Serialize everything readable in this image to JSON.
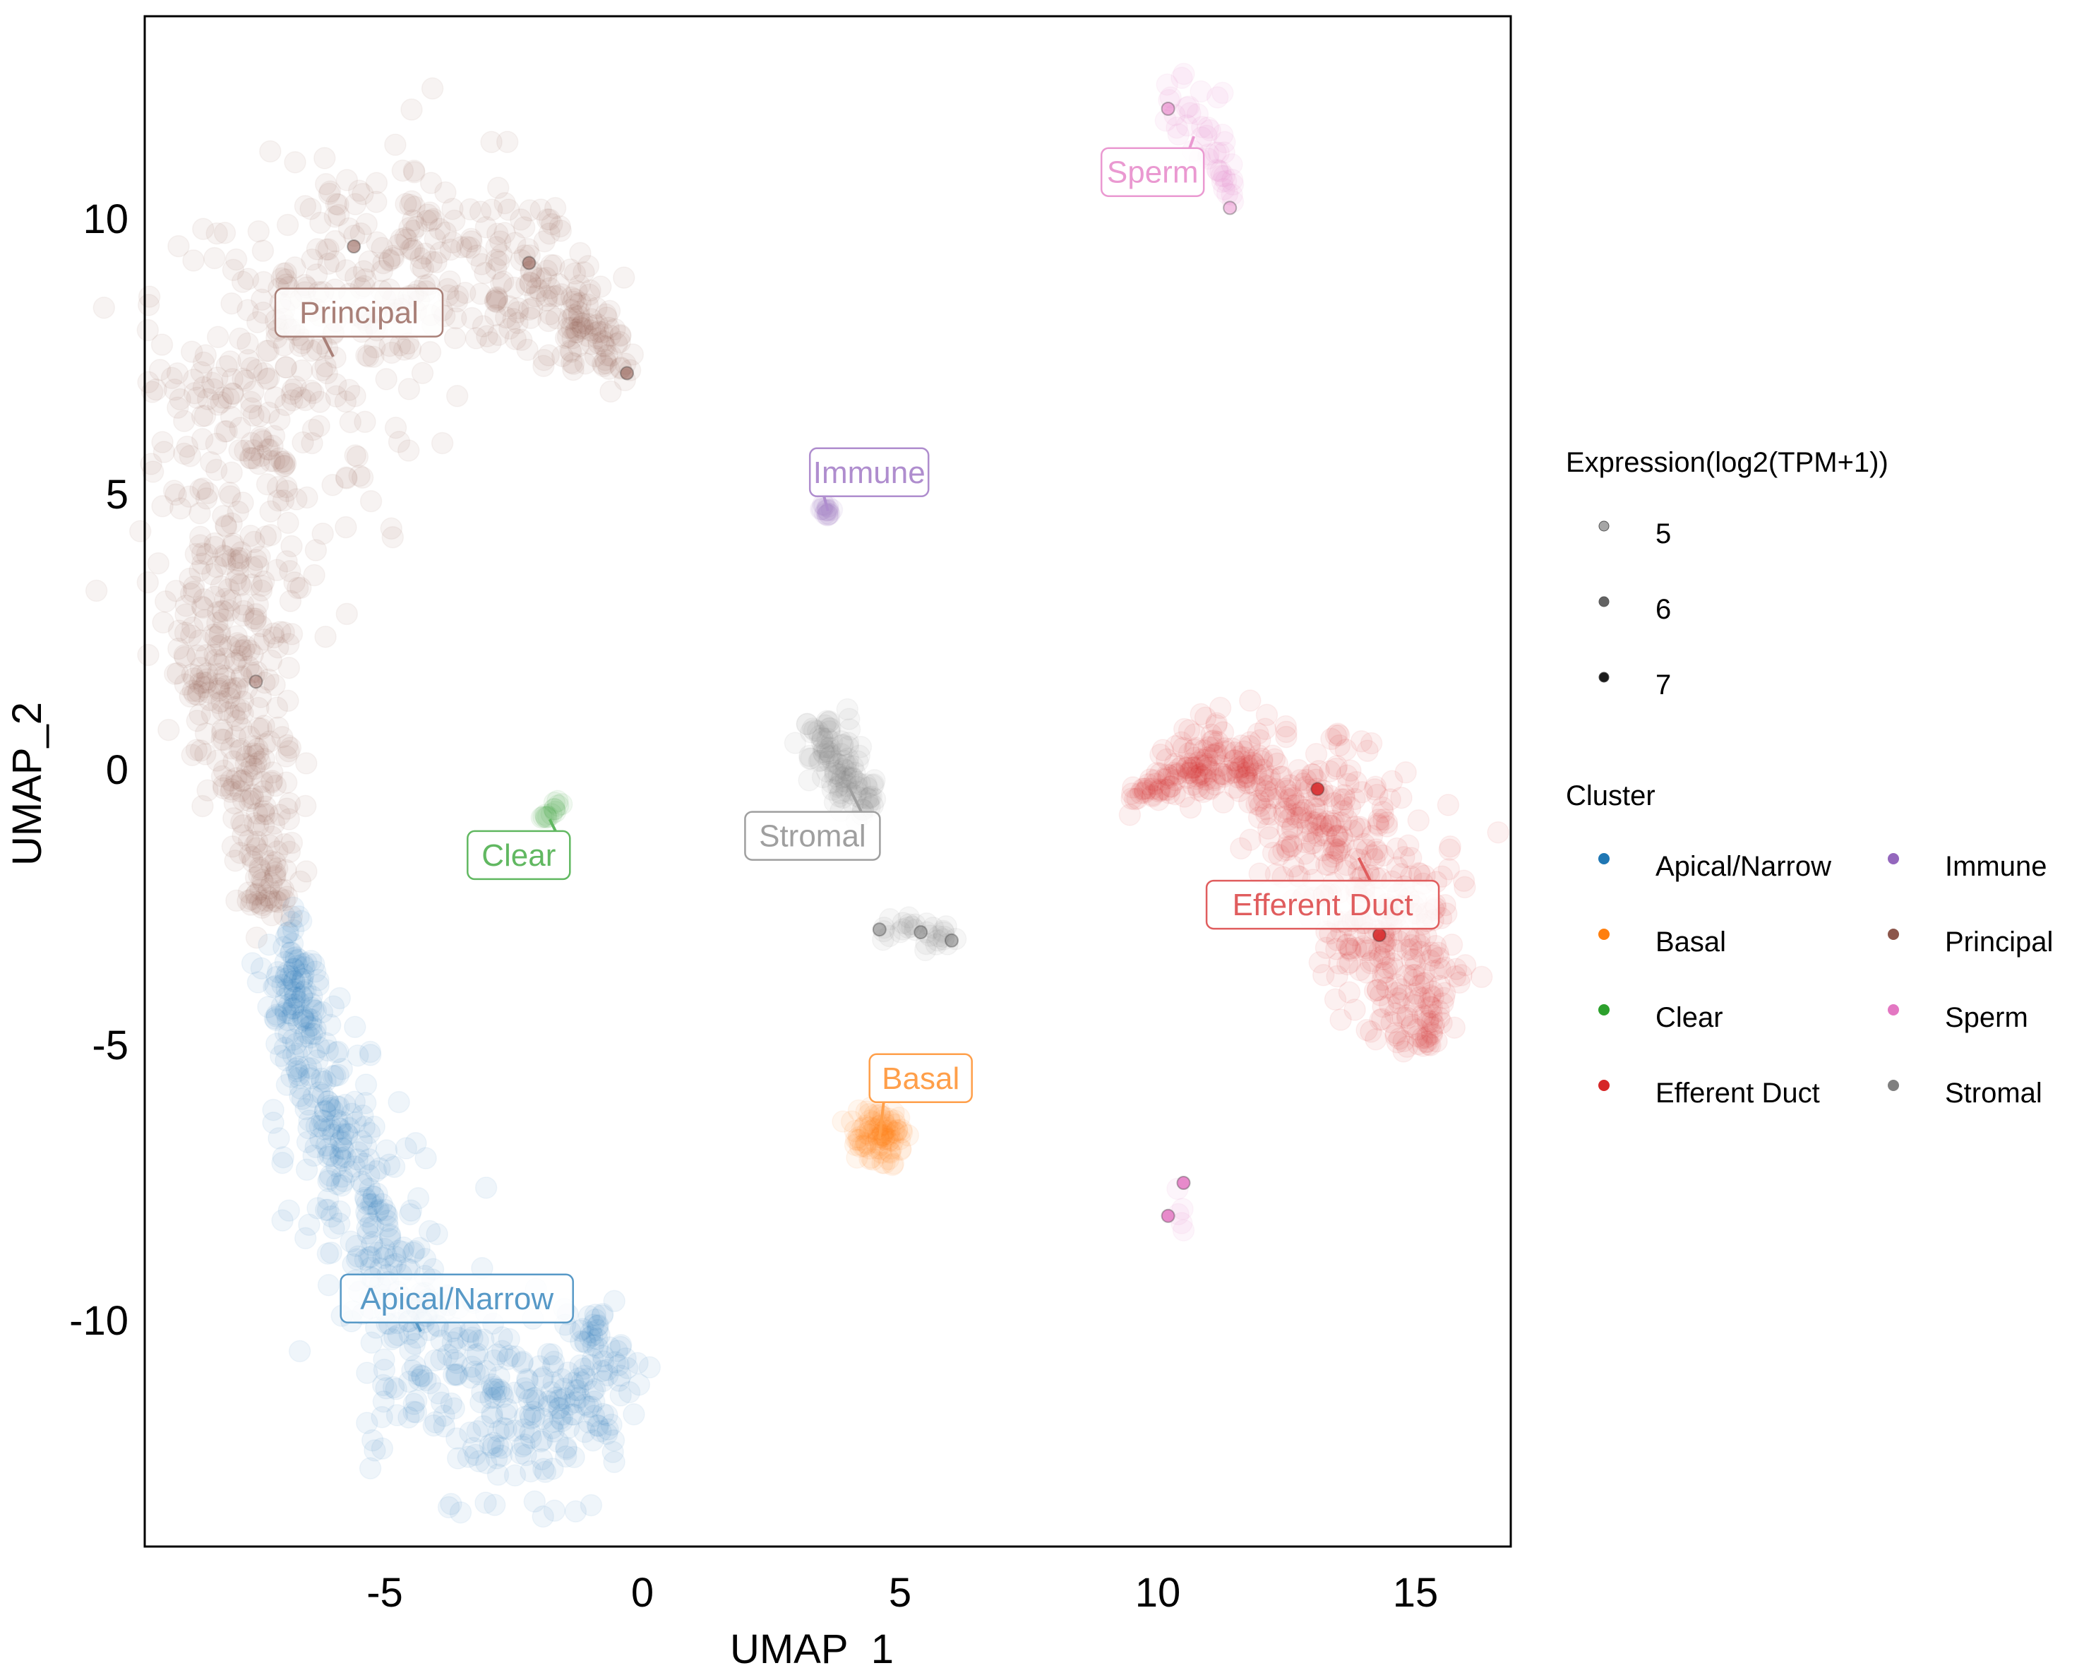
{
  "chart_data": {
    "type": "scatter",
    "title": "",
    "xlabel": "UMAP_1",
    "ylabel": "UMAP_2",
    "xlim": [
      -10,
      16.5
    ],
    "ylim": [
      -14,
      13.8
    ],
    "x_ticks": [
      -5,
      0,
      5,
      10,
      15
    ],
    "y_ticks": [
      10,
      5,
      0,
      -5,
      -10
    ],
    "x_tick_labels": [
      "-5",
      "0",
      "5",
      "10",
      "15"
    ],
    "y_tick_labels": [
      "10",
      "5",
      "0",
      "-5",
      "-10"
    ],
    "grid": false,
    "legend_placement": "right",
    "expression_legend": {
      "title": "Expression(log2(TPM+1))",
      "levels": [
        {
          "label": "5",
          "color": "#a6a6a6"
        },
        {
          "label": "6",
          "color": "#636363"
        },
        {
          "label": "7",
          "color": "#1a1a1a"
        }
      ]
    },
    "cluster_legend": {
      "title": "Cluster",
      "entries": [
        {
          "label": "Apical/Narrow",
          "color": "#1f77b4"
        },
        {
          "label": "Basal",
          "color": "#ff7f0e"
        },
        {
          "label": "Clear",
          "color": "#2ca02c"
        },
        {
          "label": "Efferent Duct",
          "color": "#d62728"
        },
        {
          "label": "Immune",
          "color": "#9467bd"
        },
        {
          "label": "Principal",
          "color": "#8c564b"
        },
        {
          "label": "Sperm",
          "color": "#e377c2"
        },
        {
          "label": "Stromal",
          "color": "#7f7f7f"
        }
      ]
    },
    "clusters": [
      {
        "name": "Principal",
        "color": "#8c564b",
        "n": 900,
        "spread": 0.75,
        "path": [
          [
            -7.2,
            -2.5
          ],
          [
            -7.4,
            -1.0
          ],
          [
            -7.8,
            0.5
          ],
          [
            -8.2,
            2.2
          ],
          [
            -8.2,
            4.0
          ],
          [
            -7.8,
            5.8
          ],
          [
            -7.0,
            7.5
          ],
          [
            -6.0,
            8.8
          ],
          [
            -4.8,
            9.5
          ],
          [
            -3.5,
            9.5
          ],
          [
            -2.2,
            9.0
          ],
          [
            -1.2,
            8.2
          ],
          [
            -0.5,
            7.3
          ]
        ],
        "width": [
          0.25,
          0.35,
          0.5,
          0.7,
          0.9,
          1.1,
          1.2,
          1.1,
          1.0,
          0.9,
          0.7,
          0.45,
          0.2
        ],
        "label": {
          "text": "Principal",
          "x": -5.5,
          "y": 8.3,
          "anchor": [
            -6.0,
            7.5
          ]
        }
      },
      {
        "name": "Apical/Narrow",
        "color": "#1f77b4",
        "n": 650,
        "spread": 0.7,
        "path": [
          [
            -7.0,
            -2.8
          ],
          [
            -6.6,
            -4.5
          ],
          [
            -6.0,
            -6.5
          ],
          [
            -5.3,
            -8.3
          ],
          [
            -4.4,
            -10.2
          ],
          [
            -3.3,
            -11.5
          ],
          [
            -2.2,
            -12.3
          ],
          [
            -1.3,
            -12.0
          ],
          [
            -0.9,
            -11.0
          ],
          [
            -1.0,
            -9.9
          ]
        ],
        "width": [
          0.2,
          0.35,
          0.5,
          0.6,
          0.8,
          0.9,
          0.7,
          0.6,
          0.45,
          0.25
        ],
        "label": {
          "text": "Apical/Narrow",
          "x": -3.6,
          "y": -9.6,
          "anchor": [
            -4.3,
            -10.2
          ]
        }
      },
      {
        "name": "Efferent Duct",
        "color": "#d62728",
        "n": 600,
        "spread": 0.6,
        "path": [
          [
            9.6,
            -0.5
          ],
          [
            10.5,
            -0.1
          ],
          [
            11.5,
            0.2
          ],
          [
            12.5,
            -0.1
          ],
          [
            13.3,
            -0.9
          ],
          [
            14.0,
            -2.0
          ],
          [
            14.6,
            -3.2
          ],
          [
            15.0,
            -4.2
          ],
          [
            15.2,
            -4.9
          ]
        ],
        "width": [
          0.15,
          0.3,
          0.4,
          0.55,
          0.7,
          0.75,
          0.7,
          0.55,
          0.3
        ],
        "label": {
          "text": "Efferent Duct",
          "x": 13.2,
          "y": -2.45,
          "anchor": [
            13.9,
            -1.6
          ]
        }
      },
      {
        "name": "Stromal",
        "color": "#7f7f7f",
        "n": 110,
        "spread": 0.4,
        "path": [
          [
            3.5,
            0.8
          ],
          [
            3.7,
            0.3
          ],
          [
            4.0,
            -0.3
          ],
          [
            4.4,
            -0.7
          ]
        ],
        "width": [
          0.25,
          0.3,
          0.25,
          0.15
        ],
        "label": {
          "text": "Stromal",
          "x": 3.3,
          "y": -1.2,
          "anchor": [
            4.0,
            -0.3
          ]
        }
      },
      {
        "name": "Stromal-lower",
        "color": "#7f7f7f",
        "n": 30,
        "spread": 0.25,
        "path": [
          [
            4.6,
            -2.9
          ],
          [
            5.3,
            -2.9
          ],
          [
            6.0,
            -3.1
          ]
        ],
        "width": [
          0.12,
          0.12,
          0.12
        ],
        "label": null
      },
      {
        "name": "Basal",
        "color": "#ff7f0e",
        "n": 90,
        "spread": 0.3,
        "path": [
          [
            4.2,
            -6.8
          ],
          [
            4.6,
            -6.6
          ],
          [
            5.0,
            -6.5
          ]
        ],
        "width": [
          0.25,
          0.3,
          0.2
        ],
        "label": {
          "text": "Basal",
          "x": 5.4,
          "y": -5.6,
          "anchor": [
            4.6,
            -6.7
          ]
        }
      },
      {
        "name": "Immune",
        "color": "#9467bd",
        "n": 14,
        "spread": 0.08,
        "path": [
          [
            3.5,
            4.8
          ],
          [
            3.6,
            4.6
          ]
        ],
        "width": [
          0.05,
          0.05
        ],
        "label": {
          "text": "Immune",
          "x": 4.4,
          "y": 5.4,
          "anchor": [
            3.6,
            4.7
          ]
        }
      },
      {
        "name": "Clear",
        "color": "#2ca02c",
        "n": 14,
        "spread": 0.08,
        "path": [
          [
            -2.0,
            -1.0
          ],
          [
            -1.6,
            -0.6
          ]
        ],
        "width": [
          0.05,
          0.05
        ],
        "label": {
          "text": "Clear",
          "x": -2.4,
          "y": -1.55,
          "anchor": [
            -1.8,
            -0.9
          ]
        }
      },
      {
        "name": "Sperm",
        "color": "#e377c2",
        "n": 45,
        "spread": 0.3,
        "path": [
          [
            10.1,
            12.2
          ],
          [
            10.7,
            12.0
          ],
          [
            11.1,
            11.4
          ],
          [
            11.3,
            10.8
          ],
          [
            11.4,
            10.3
          ]
        ],
        "width": [
          0.3,
          0.3,
          0.2,
          0.1,
          0.05
        ],
        "label": {
          "text": "Sperm",
          "x": 9.9,
          "y": 10.85,
          "anchor": [
            10.7,
            11.5
          ]
        }
      },
      {
        "name": "Sperm-lower",
        "color": "#e377c2",
        "n": 5,
        "spread": 0.15,
        "path": [
          [
            10.5,
            -7.5
          ],
          [
            10.4,
            -8.2
          ],
          [
            10.6,
            -8.5
          ]
        ],
        "width": [
          0.05,
          0.05,
          0.05
        ],
        "label": null
      }
    ],
    "highlighted_points": [
      {
        "cluster": "Principal",
        "x": -5.6,
        "y": 9.5,
        "expression": 6
      },
      {
        "cluster": "Principal",
        "x": -2.2,
        "y": 9.2,
        "expression": 6
      },
      {
        "cluster": "Principal",
        "x": -0.3,
        "y": 7.2,
        "expression": 6
      },
      {
        "cluster": "Principal",
        "x": -7.5,
        "y": 1.6,
        "expression": 5
      },
      {
        "cluster": "Sperm",
        "x": 10.2,
        "y": 12.0,
        "expression": 6
      },
      {
        "cluster": "Sperm",
        "x": 11.4,
        "y": 10.2,
        "expression": 5
      },
      {
        "cluster": "Sperm",
        "x": 10.5,
        "y": -7.5,
        "expression": 7
      },
      {
        "cluster": "Sperm",
        "x": 10.2,
        "y": -8.1,
        "expression": 7
      },
      {
        "cluster": "Stromal",
        "x": 4.6,
        "y": -2.9,
        "expression": 6
      },
      {
        "cluster": "Stromal",
        "x": 5.4,
        "y": -2.95,
        "expression": 6
      },
      {
        "cluster": "Stromal",
        "x": 6.0,
        "y": -3.1,
        "expression": 6
      },
      {
        "cluster": "Efferent Duct",
        "x": 13.1,
        "y": -0.35,
        "expression": 7
      },
      {
        "cluster": "Efferent Duct",
        "x": 14.3,
        "y": -3.0,
        "expression": 7
      }
    ]
  }
}
